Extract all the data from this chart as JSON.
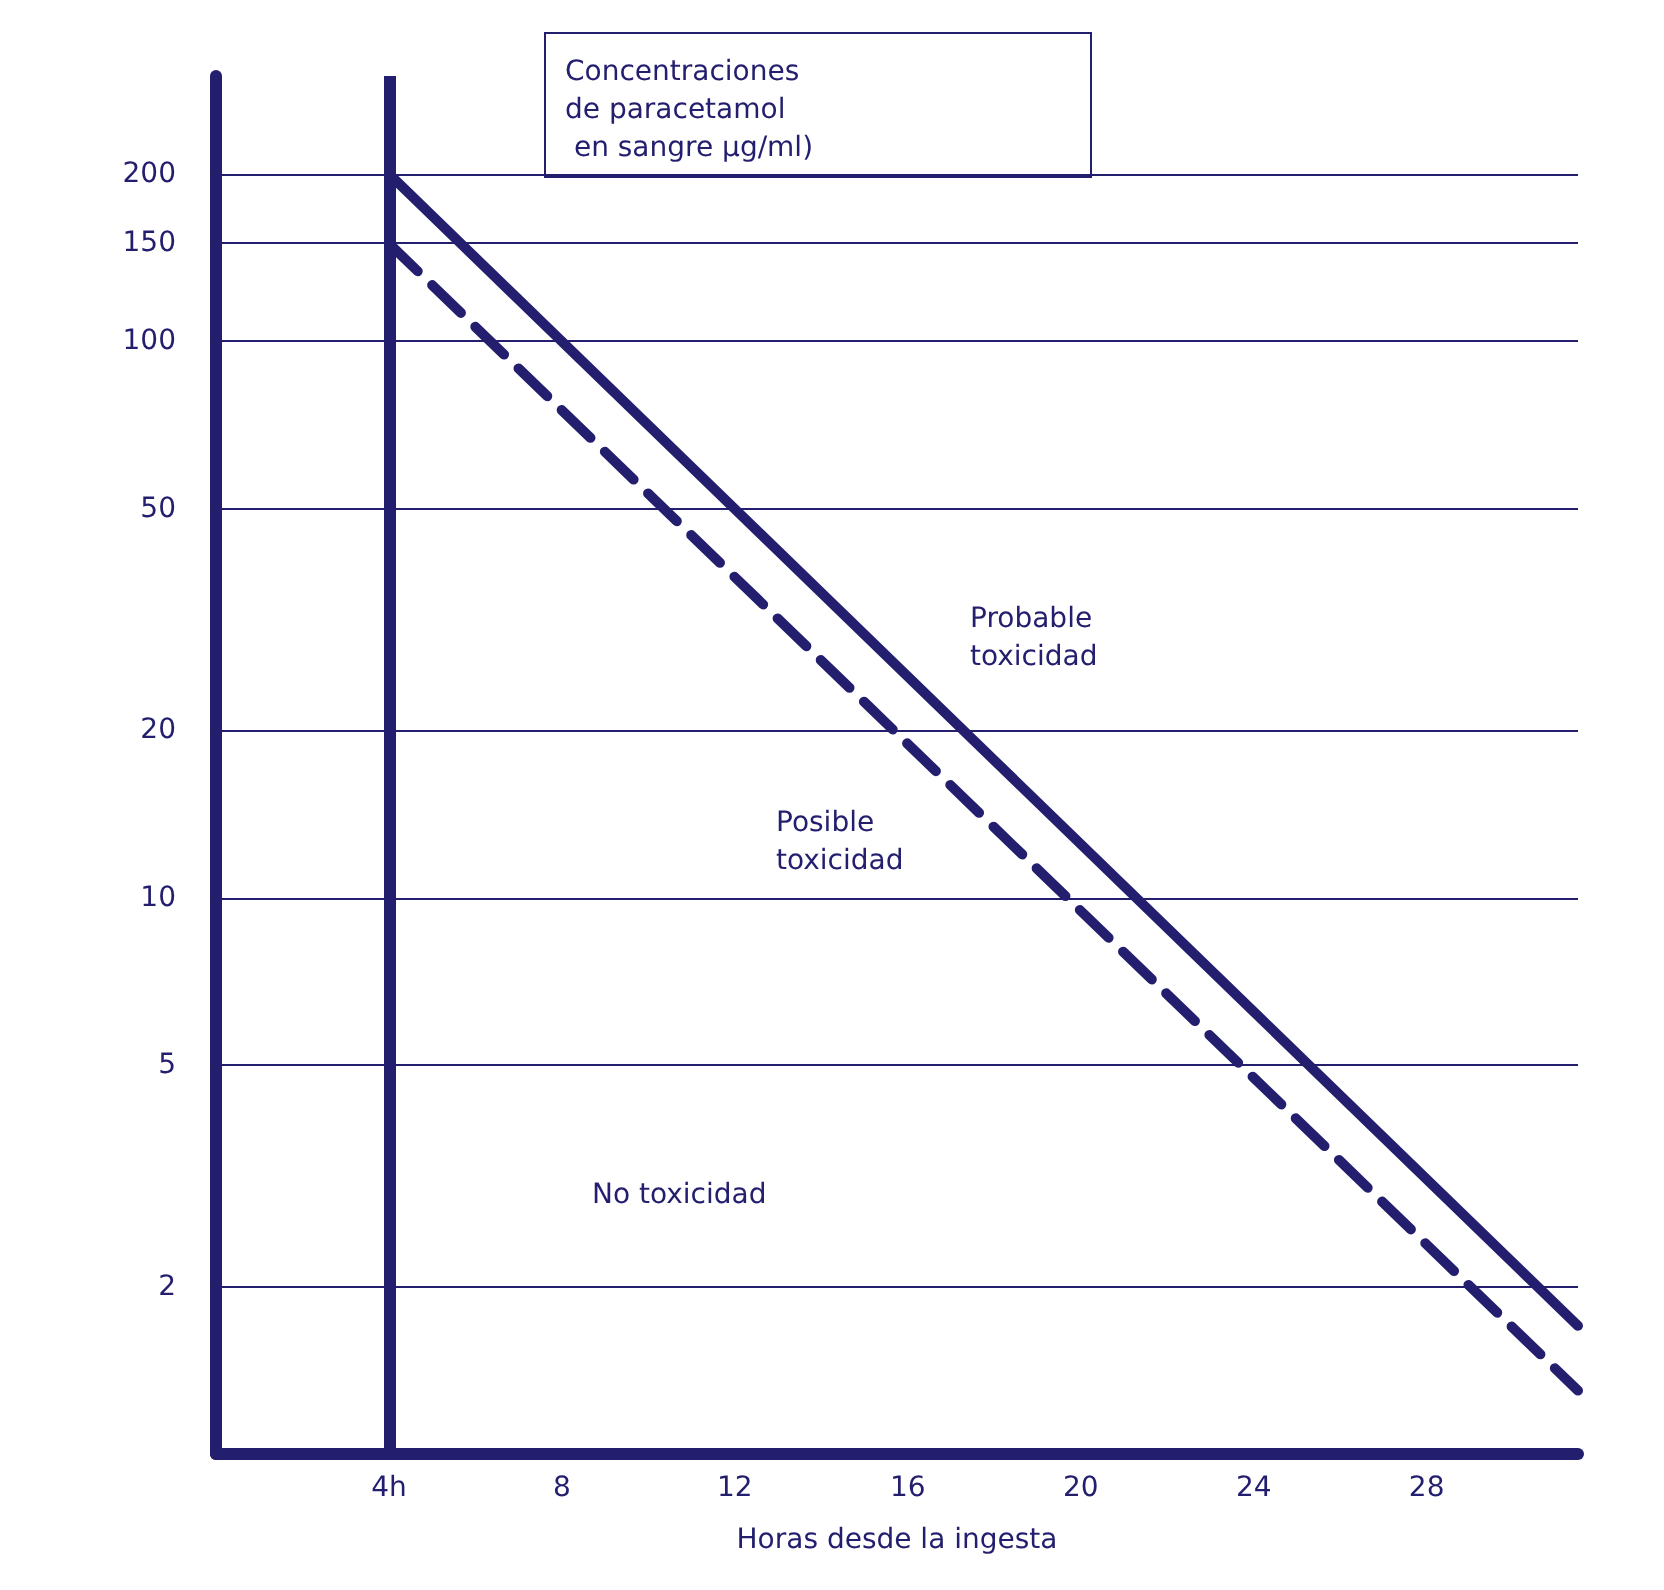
{
  "chart_data": {
    "type": "line",
    "ylabel": "Concentraciones\nde paracetamol\n en sangre µg/ml)",
    "xlabel": "Horas desde la ingesta",
    "log": "y",
    "xlim": [
      0,
      31.5
    ],
    "xticks": [
      {
        "value": 4,
        "label": "4h"
      },
      8,
      12,
      16,
      20,
      24,
      28
    ],
    "ylim": [
      1,
      300
    ],
    "yticks": [
      2,
      5,
      10,
      20,
      50,
      100,
      150,
      200
    ],
    "grid": "y",
    "marker": "none",
    "x": [
      4,
      31.5
    ],
    "series": [
      {
        "color": "#231f6e",
        "values": [
          200,
          1.7
        ],
        "line_style": "solid"
      },
      {
        "color": "#231f6e",
        "values": [
          150,
          1.3
        ],
        "line_style": "dashed"
      }
    ],
    "ref_lines": [
      {
        "axis": "x",
        "value": 4,
        "color": "#231f6e"
      }
    ],
    "annotations": [
      "Probable\ntoxicidad",
      "Posible\ntoxicidad",
      "No toxicidad"
    ]
  }
}
